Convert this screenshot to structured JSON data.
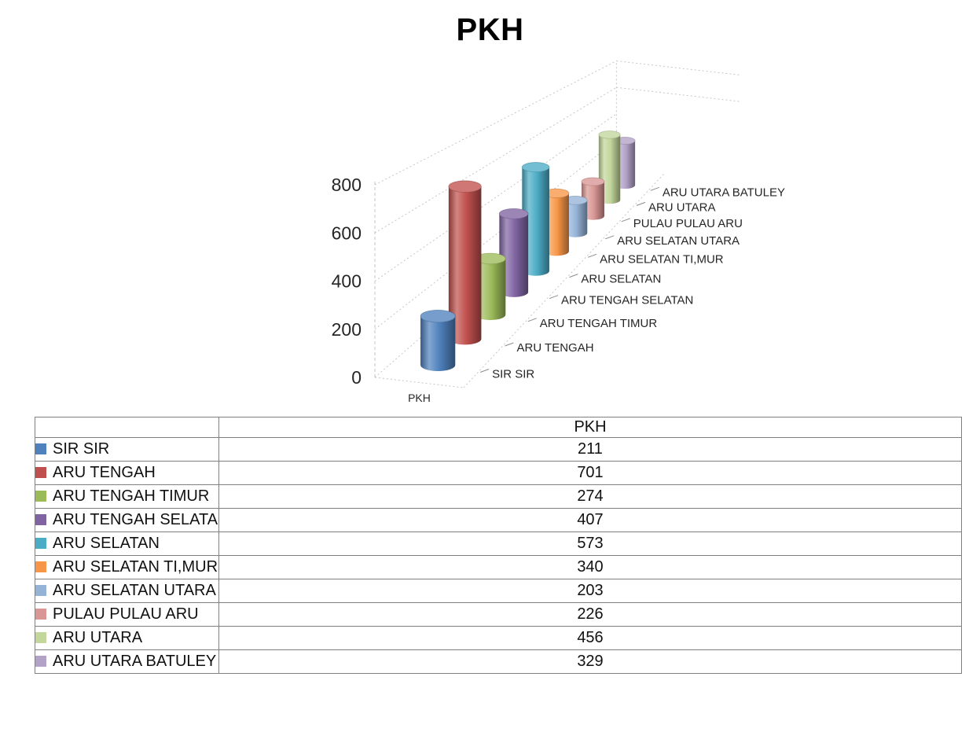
{
  "title": "PKH",
  "chart_data": {
    "type": "bar",
    "variant": "3d-cylinder",
    "title": "PKH",
    "series_name": "PKH",
    "x_tick_label": "PKH",
    "categories": [
      "SIR SIR",
      "ARU TENGAH",
      "ARU TENGAH TIMUR",
      "ARU TENGAH SELATAN",
      "ARU SELATAN",
      "ARU SELATAN TI,MUR",
      "ARU SELATAN UTARA",
      "PULAU PULAU ARU",
      "ARU UTARA",
      "ARU UTARA BATULEY"
    ],
    "values": [
      211,
      701,
      274,
      407,
      573,
      340,
      203,
      226,
      456,
      329
    ],
    "ylim": [
      0,
      800
    ],
    "yticks": [
      0,
      200,
      400,
      600,
      800
    ],
    "grid": true,
    "legend_position": "table-first-column",
    "colors": [
      "#4F81BD",
      "#C0504D",
      "#9BBB59",
      "#8064A2",
      "#4BACC6",
      "#F79646",
      "#95B3D7",
      "#D99694",
      "#C3D69B",
      "#B3A2C7"
    ]
  },
  "table": {
    "value_column_header": "PKH"
  }
}
